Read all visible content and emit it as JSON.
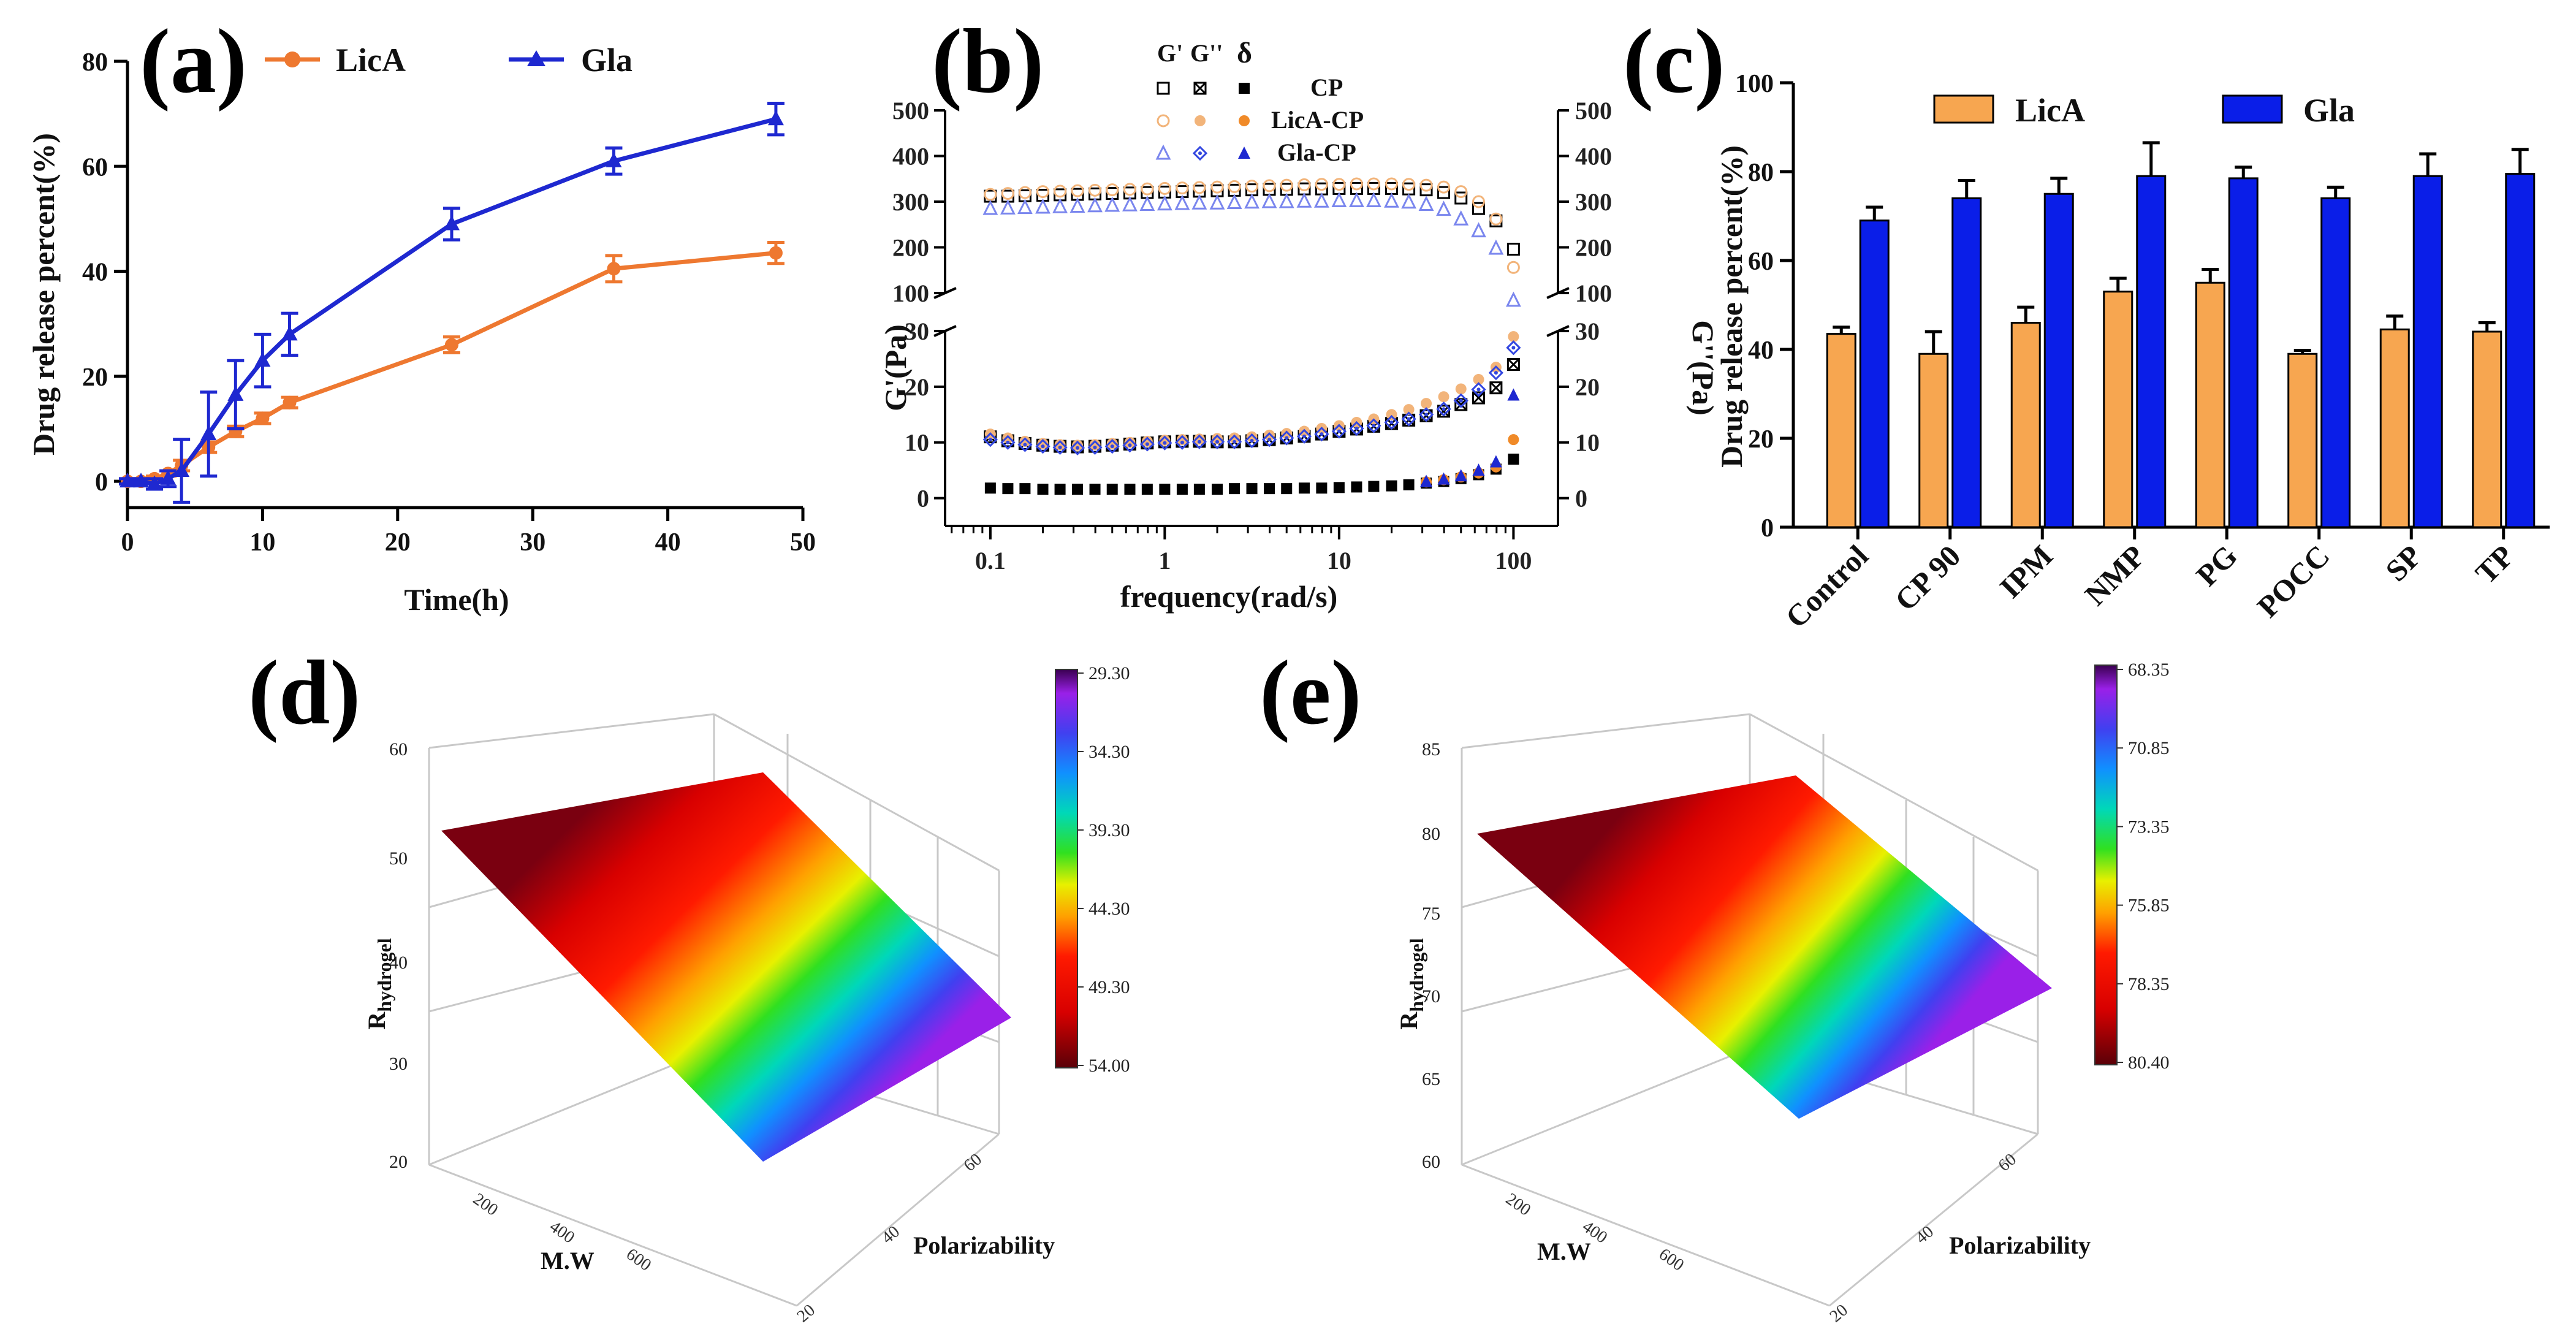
{
  "colors": {
    "licA": "#ee7830",
    "gla": "#1e28d0",
    "orangeBar": "#f7a650",
    "blueBar": "#0a1ee8",
    "black": "#000000",
    "tan": "#f2b47a",
    "lightblue": "#7a86ee"
  },
  "chart_data": [
    {
      "id": "a",
      "type": "line",
      "panel_label": "(a)",
      "xlabel": "Time(h)",
      "ylabel": "Drug release percent(%)",
      "xlim": [
        0,
        50
      ],
      "ylim": [
        -5,
        80
      ],
      "xticks": [
        0,
        10,
        20,
        30,
        40,
        50
      ],
      "yticks": [
        0,
        20,
        40,
        60,
        80
      ],
      "series": [
        {
          "name": "LicA",
          "x": [
            0,
            1,
            2,
            3,
            4,
            6,
            8,
            10,
            12,
            24,
            36,
            48
          ],
          "y": [
            0,
            0,
            0.5,
            1.5,
            3,
            6.5,
            9.5,
            12,
            15,
            26,
            40.5,
            43.5
          ],
          "err": [
            0.5,
            0.5,
            0.5,
            0.5,
            1,
            1,
            1,
            1,
            1,
            1.5,
            2.5,
            2
          ]
        },
        {
          "name": "Gla",
          "x": [
            0,
            1,
            2,
            3,
            4,
            6,
            8,
            10,
            12,
            24,
            36,
            48
          ],
          "y": [
            0,
            0,
            -0.5,
            0.5,
            2,
            9,
            16.5,
            23,
            28,
            49,
            61,
            69
          ],
          "err": [
            0.5,
            0.5,
            1,
            1.5,
            6,
            8,
            6.5,
            5,
            4,
            3,
            2.5,
            3
          ]
        }
      ]
    },
    {
      "id": "b",
      "type": "scatter",
      "panel_label": "(b)",
      "xlabel": "frequency(rad/s)",
      "ylabel": "G'(Pa)",
      "ylabel_right": "G''(Pa)",
      "xscale": "log",
      "xlim": [
        0.055,
        180
      ],
      "upper_yticks": [
        100,
        200,
        300,
        400,
        500
      ],
      "lower_yticks": [
        0,
        10,
        20,
        30
      ],
      "xticks": [
        "0.1",
        "1",
        "10",
        "100"
      ],
      "legend_header": [
        "G'",
        "G''",
        "δ"
      ],
      "legend_rows": [
        "CP",
        "LicA-CP",
        "Gla-CP"
      ],
      "freq": [
        0.1,
        0.126,
        0.158,
        0.2,
        0.251,
        0.316,
        0.398,
        0.5,
        0.631,
        0.794,
        1,
        1.26,
        1.58,
        2,
        2.51,
        3.16,
        3.98,
        5,
        6.31,
        7.94,
        10,
        12.6,
        15.8,
        20,
        25.1,
        31.6,
        39.8,
        50,
        63.1,
        79.4,
        100
      ],
      "series": [
        {
          "name": "CP G'",
          "marker": "square-open",
          "color": "#000000",
          "y": [
            312,
            312,
            313,
            314,
            315,
            316,
            317,
            318,
            319,
            320,
            321,
            322,
            323,
            324,
            325,
            326,
            327,
            327,
            328,
            328,
            329,
            329,
            329,
            329,
            328,
            326,
            320,
            308,
            285,
            258,
            196
          ]
        },
        {
          "name": "LicA-CP G'",
          "marker": "circle-open",
          "color": "#f2b47a",
          "y": [
            316,
            318,
            320,
            322,
            323,
            324,
            325,
            326,
            327,
            328,
            329,
            330,
            331,
            332,
            333,
            334,
            335,
            336,
            337,
            338,
            338,
            339,
            339,
            339,
            338,
            336,
            332,
            322,
            300,
            262,
            156
          ]
        },
        {
          "name": "Gla-CP G'",
          "marker": "triangle-open",
          "color": "#7a86ee",
          "y": [
            285,
            286,
            287,
            288,
            289,
            290,
            291,
            292,
            293,
            294,
            295,
            296,
            297,
            297,
            298,
            299,
            300,
            300,
            301,
            301,
            302,
            302,
            302,
            301,
            299,
            294,
            283,
            262,
            236,
            198,
            84
          ]
        },
        {
          "name": "CP G''",
          "marker": "square-cross",
          "color": "#000000",
          "y": [
            11,
            10.3,
            9.8,
            9.5,
            9.3,
            9.2,
            9.3,
            9.5,
            9.7,
            9.9,
            10.1,
            10.2,
            10.2,
            10.1,
            10.1,
            10.3,
            10.5,
            10.8,
            11.1,
            11.5,
            12,
            12.4,
            12.9,
            13.4,
            14,
            14.8,
            15.6,
            16.8,
            18,
            19.8,
            24
          ]
        },
        {
          "name": "LicA-CP G''",
          "marker": "circle-filled",
          "color": "#f2b47a",
          "y": [
            11.5,
            10.8,
            10.2,
            9.8,
            9.6,
            9.5,
            9.6,
            9.8,
            10,
            10.2,
            10.4,
            10.5,
            10.6,
            10.7,
            10.8,
            11,
            11.3,
            11.6,
            12,
            12.5,
            13,
            13.6,
            14.2,
            15,
            15.9,
            17,
            18.2,
            19.6,
            21.3,
            23.5,
            29
          ]
        },
        {
          "name": "Gla-CP G''",
          "marker": "diamond-dot",
          "color": "#3246e0",
          "y": [
            10.5,
            10,
            9.6,
            9.3,
            9.1,
            9,
            9.1,
            9.3,
            9.5,
            9.7,
            9.9,
            10,
            10.1,
            10.1,
            10.1,
            10.3,
            10.5,
            10.8,
            11.1,
            11.5,
            12,
            12.5,
            13,
            13.6,
            14.2,
            15,
            16,
            17.5,
            19.5,
            22.5,
            27
          ]
        },
        {
          "name": "CP δ",
          "marker": "square-filled",
          "color": "#000000",
          "y": [
            1.8,
            1.7,
            1.7,
            1.6,
            1.6,
            1.6,
            1.6,
            1.6,
            1.6,
            1.6,
            1.6,
            1.6,
            1.6,
            1.6,
            1.7,
            1.7,
            1.7,
            1.7,
            1.8,
            1.8,
            1.9,
            2,
            2.1,
            2.2,
            2.4,
            2.7,
            3,
            3.5,
            4.2,
            5.2,
            7
          ]
        },
        {
          "name": "LicA-CP δ",
          "marker": "circle-filled-dark",
          "color": "#f08a28",
          "y": [
            null,
            null,
            null,
            null,
            null,
            null,
            null,
            null,
            null,
            null,
            null,
            null,
            null,
            null,
            null,
            null,
            null,
            null,
            null,
            null,
            null,
            null,
            null,
            null,
            null,
            2.9,
            3.3,
            3.8,
            4.5,
            5.6,
            10.5
          ]
        },
        {
          "name": "Gla-CP δ",
          "marker": "triangle-filled",
          "color": "#1e28d0",
          "y": [
            null,
            null,
            null,
            null,
            null,
            null,
            null,
            null,
            null,
            null,
            null,
            null,
            null,
            null,
            null,
            null,
            null,
            null,
            null,
            null,
            null,
            null,
            null,
            null,
            null,
            3,
            3.4,
            4,
            5,
            6.5,
            18.5
          ]
        }
      ]
    },
    {
      "id": "c",
      "type": "bar",
      "panel_label": "(c)",
      "ylabel": "Drug release percent(%)",
      "ylim": [
        0,
        100
      ],
      "yticks": [
        0,
        20,
        40,
        60,
        80,
        100
      ],
      "categories": [
        "Control",
        "CP 90",
        "IPM",
        "NMP",
        "PG",
        "POCC",
        "SP",
        "TP"
      ],
      "series": [
        {
          "name": "LicA",
          "values": [
            43.5,
            39,
            46,
            53,
            55,
            39,
            44.5,
            44
          ],
          "err": [
            1.5,
            5,
            3.5,
            3,
            3,
            0.8,
            3,
            2
          ]
        },
        {
          "name": "Gla",
          "values": [
            69,
            74,
            75,
            79,
            78.5,
            74,
            79,
            79.5
          ],
          "err": [
            3,
            4,
            3.5,
            7.5,
            2.5,
            2.5,
            5,
            5.5
          ]
        }
      ]
    },
    {
      "id": "d",
      "type": "surface",
      "panel_label": "(d)",
      "zlabel_main": "R",
      "zlabel_sub": "hydrogel",
      "xlabel": "M.W",
      "ylabel": "Polarizability",
      "zticks": [
        "20",
        "30",
        "40",
        "50",
        "60"
      ],
      "xticks": [
        "200",
        "400",
        "600"
      ],
      "yticks": [
        "20",
        "40",
        "60"
      ],
      "colorbar": [
        "29.30",
        "34.30",
        "39.30",
        "44.30",
        "49.30",
        "54.00"
      ]
    },
    {
      "id": "e",
      "type": "surface",
      "panel_label": "(e)",
      "zlabel_main": "R",
      "zlabel_sub": "hydrogel",
      "xlabel": "M.W",
      "ylabel": "Polarizability",
      "zticks": [
        "60",
        "65",
        "70",
        "75",
        "80",
        "85"
      ],
      "xticks": [
        "200",
        "400",
        "600"
      ],
      "yticks": [
        "20",
        "40",
        "60"
      ],
      "colorbar": [
        "68.35",
        "70.85",
        "73.35",
        "75.85",
        "78.35",
        "80.40"
      ]
    }
  ]
}
